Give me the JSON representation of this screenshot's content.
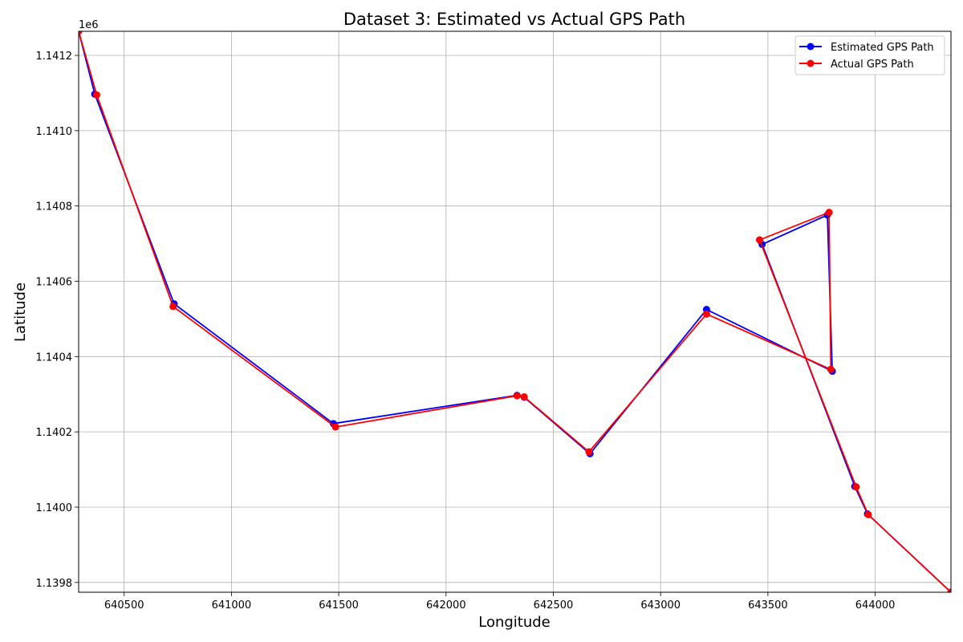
{
  "chart_data": {
    "type": "line",
    "title": "Dataset 3: Estimated vs Actual GPS Path",
    "xlabel": "Longitude",
    "ylabel": "Latitude",
    "y_offset_label": "1e6",
    "xlim": [
      640288,
      644353
    ],
    "ylim": [
      1139774,
      1141264
    ],
    "x_ticks": [
      640500,
      641000,
      641500,
      642000,
      642500,
      643000,
      643500,
      644000
    ],
    "y_ticks": [
      1139800,
      1140000,
      1140200,
      1140400,
      1140600,
      1140800,
      1141000,
      1141200
    ],
    "y_tick_labels": [
      "1.1398",
      "1.1400",
      "1.1402",
      "1.1404",
      "1.1406",
      "1.1408",
      "1.1410",
      "1.1412"
    ],
    "grid": true,
    "legend_position": "top-right",
    "series": [
      {
        "name": "Estimated GPS Path",
        "color": "#0000ff",
        "marker": "circle",
        "x": [
          640288,
          640363,
          640733,
          641475,
          642331,
          642364,
          642671,
          643214,
          643800,
          643777,
          643473,
          643905,
          643964,
          644353
        ],
        "y": [
          1141264,
          1141097,
          1140540,
          1140222,
          1140297,
          1140292,
          1140142,
          1140525,
          1140361,
          1140776,
          1140698,
          1140055,
          1139982,
          1139774
        ]
      },
      {
        "name": "Actual GPS Path",
        "color": "#ff0000",
        "marker": "circle",
        "x": [
          640288,
          640372,
          640728,
          641485,
          642331,
          642364,
          642666,
          643214,
          643793,
          643785,
          643461,
          643911,
          643968,
          644353
        ],
        "y": [
          1141264,
          1141095,
          1140533,
          1140213,
          1140296,
          1140293,
          1140147,
          1140513,
          1140366,
          1140783,
          1140710,
          1140054,
          1139980,
          1139774
        ]
      }
    ]
  }
}
